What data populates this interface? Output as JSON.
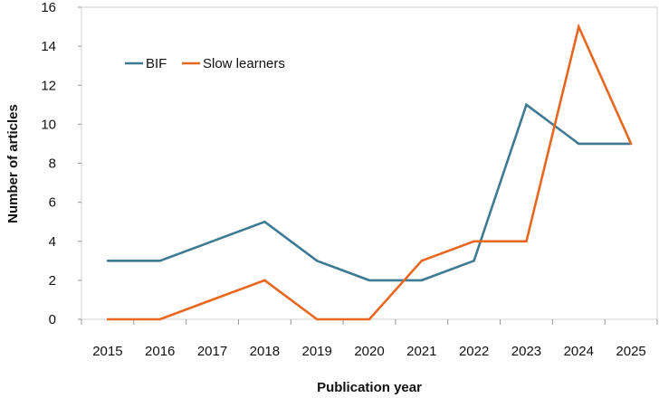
{
  "chart_data": {
    "type": "line",
    "title": "",
    "xlabel": "Publication year",
    "ylabel": "Number of articles",
    "categories": [
      "2015",
      "2016",
      "2017",
      "2018",
      "2019",
      "2020",
      "2021",
      "2022",
      "2023",
      "2024",
      "2025"
    ],
    "ylim": [
      0,
      16
    ],
    "yticks": [
      "0",
      "2",
      "4",
      "6",
      "8",
      "10",
      "12",
      "14",
      "16"
    ],
    "grid": false,
    "legend_position": "top-left",
    "series": [
      {
        "name": "BIF",
        "color": "#3E7A92",
        "values": [
          3,
          3,
          4,
          5,
          3,
          2,
          2,
          3,
          11,
          9,
          9
        ]
      },
      {
        "name": "Slow learners",
        "color": "#E8671F",
        "values": [
          0,
          0,
          1,
          2,
          0,
          0,
          3,
          4,
          4,
          15,
          9
        ]
      }
    ]
  }
}
